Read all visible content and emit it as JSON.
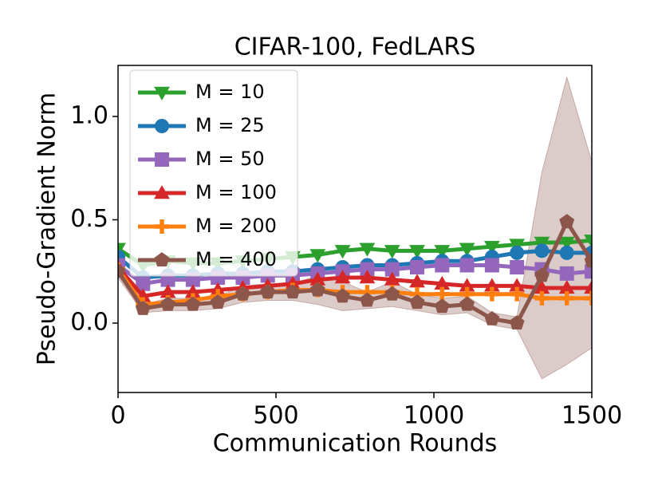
{
  "chart_data": {
    "type": "line",
    "title": "CIFAR-100, FedLARS",
    "xlabel": "Communication Rounds",
    "ylabel": "Pseudo-Gradient Norm",
    "x": [
      0,
      79,
      158,
      237,
      316,
      395,
      474,
      553,
      632,
      711,
      789,
      868,
      947,
      1026,
      1105,
      1184,
      1263,
      1342,
      1421,
      1500
    ],
    "xlim": [
      0,
      1500
    ],
    "xticks": [
      0,
      500,
      1000,
      1500
    ],
    "ylim": [
      -0.336,
      1.247
    ],
    "yticks": [
      {
        "value": 0,
        "label": "0.0"
      },
      0.5,
      {
        "value": 1,
        "label": "1.0"
      }
    ],
    "legend": "upper left",
    "series": [
      {
        "name": "M = 10",
        "color": "#2ca02c",
        "marker": "triangle-down",
        "values": [
          0.36,
          0.28,
          0.3,
          0.29,
          0.29,
          0.3,
          0.31,
          0.32,
          0.33,
          0.35,
          0.36,
          0.35,
          0.35,
          0.35,
          0.36,
          0.37,
          0.38,
          0.39,
          0.39,
          0.4
        ]
      },
      {
        "name": "M = 25",
        "color": "#1f77b4",
        "marker": "circle",
        "values": [
          0.32,
          0.22,
          0.23,
          0.23,
          0.24,
          0.24,
          0.25,
          0.25,
          0.26,
          0.27,
          0.28,
          0.28,
          0.29,
          0.3,
          0.3,
          0.32,
          0.34,
          0.35,
          0.34,
          0.34
        ]
      },
      {
        "name": "M = 50",
        "color": "#9467bd",
        "marker": "square",
        "values": [
          0.28,
          0.19,
          0.21,
          0.21,
          0.22,
          0.22,
          0.23,
          0.23,
          0.24,
          0.25,
          0.26,
          0.26,
          0.27,
          0.28,
          0.28,
          0.28,
          0.27,
          0.26,
          0.24,
          0.25
        ]
      },
      {
        "name": "M = 100",
        "color": "#d62728",
        "marker": "triangle-up",
        "values": [
          0.27,
          0.13,
          0.15,
          0.15,
          0.16,
          0.17,
          0.18,
          0.19,
          0.21,
          0.22,
          0.22,
          0.21,
          0.2,
          0.19,
          0.18,
          0.18,
          0.18,
          0.17,
          0.17,
          0.17
        ]
      },
      {
        "name": "M = 200",
        "color": "#ff7f0e",
        "marker": "plus",
        "values": [
          0.26,
          0.09,
          0.1,
          0.11,
          0.13,
          0.14,
          0.15,
          0.16,
          0.16,
          0.15,
          0.15,
          0.15,
          0.14,
          0.14,
          0.14,
          0.14,
          0.14,
          0.12,
          0.12,
          0.12
        ]
      },
      {
        "name": "M = 400",
        "color": "#8c564b",
        "marker": "pentagon",
        "values": [
          0.25,
          0.07,
          0.09,
          0.09,
          0.1,
          0.14,
          0.15,
          0.15,
          0.16,
          0.13,
          0.11,
          0.14,
          0.1,
          0.08,
          0.09,
          0.02,
          0.0,
          0.23,
          0.49,
          0.3
        ],
        "lower": [
          0.22,
          0.05,
          0.06,
          0.06,
          0.07,
          0.1,
          0.11,
          0.11,
          0.09,
          0.06,
          0.07,
          0.08,
          0.06,
          0.04,
          0.05,
          -0.01,
          -0.03,
          -0.27,
          -0.2,
          -0.12
        ],
        "upper": [
          0.28,
          0.09,
          0.12,
          0.12,
          0.13,
          0.18,
          0.19,
          0.19,
          0.23,
          0.2,
          0.15,
          0.2,
          0.14,
          0.12,
          0.13,
          0.05,
          0.03,
          0.73,
          1.19,
          0.78
        ]
      }
    ]
  }
}
